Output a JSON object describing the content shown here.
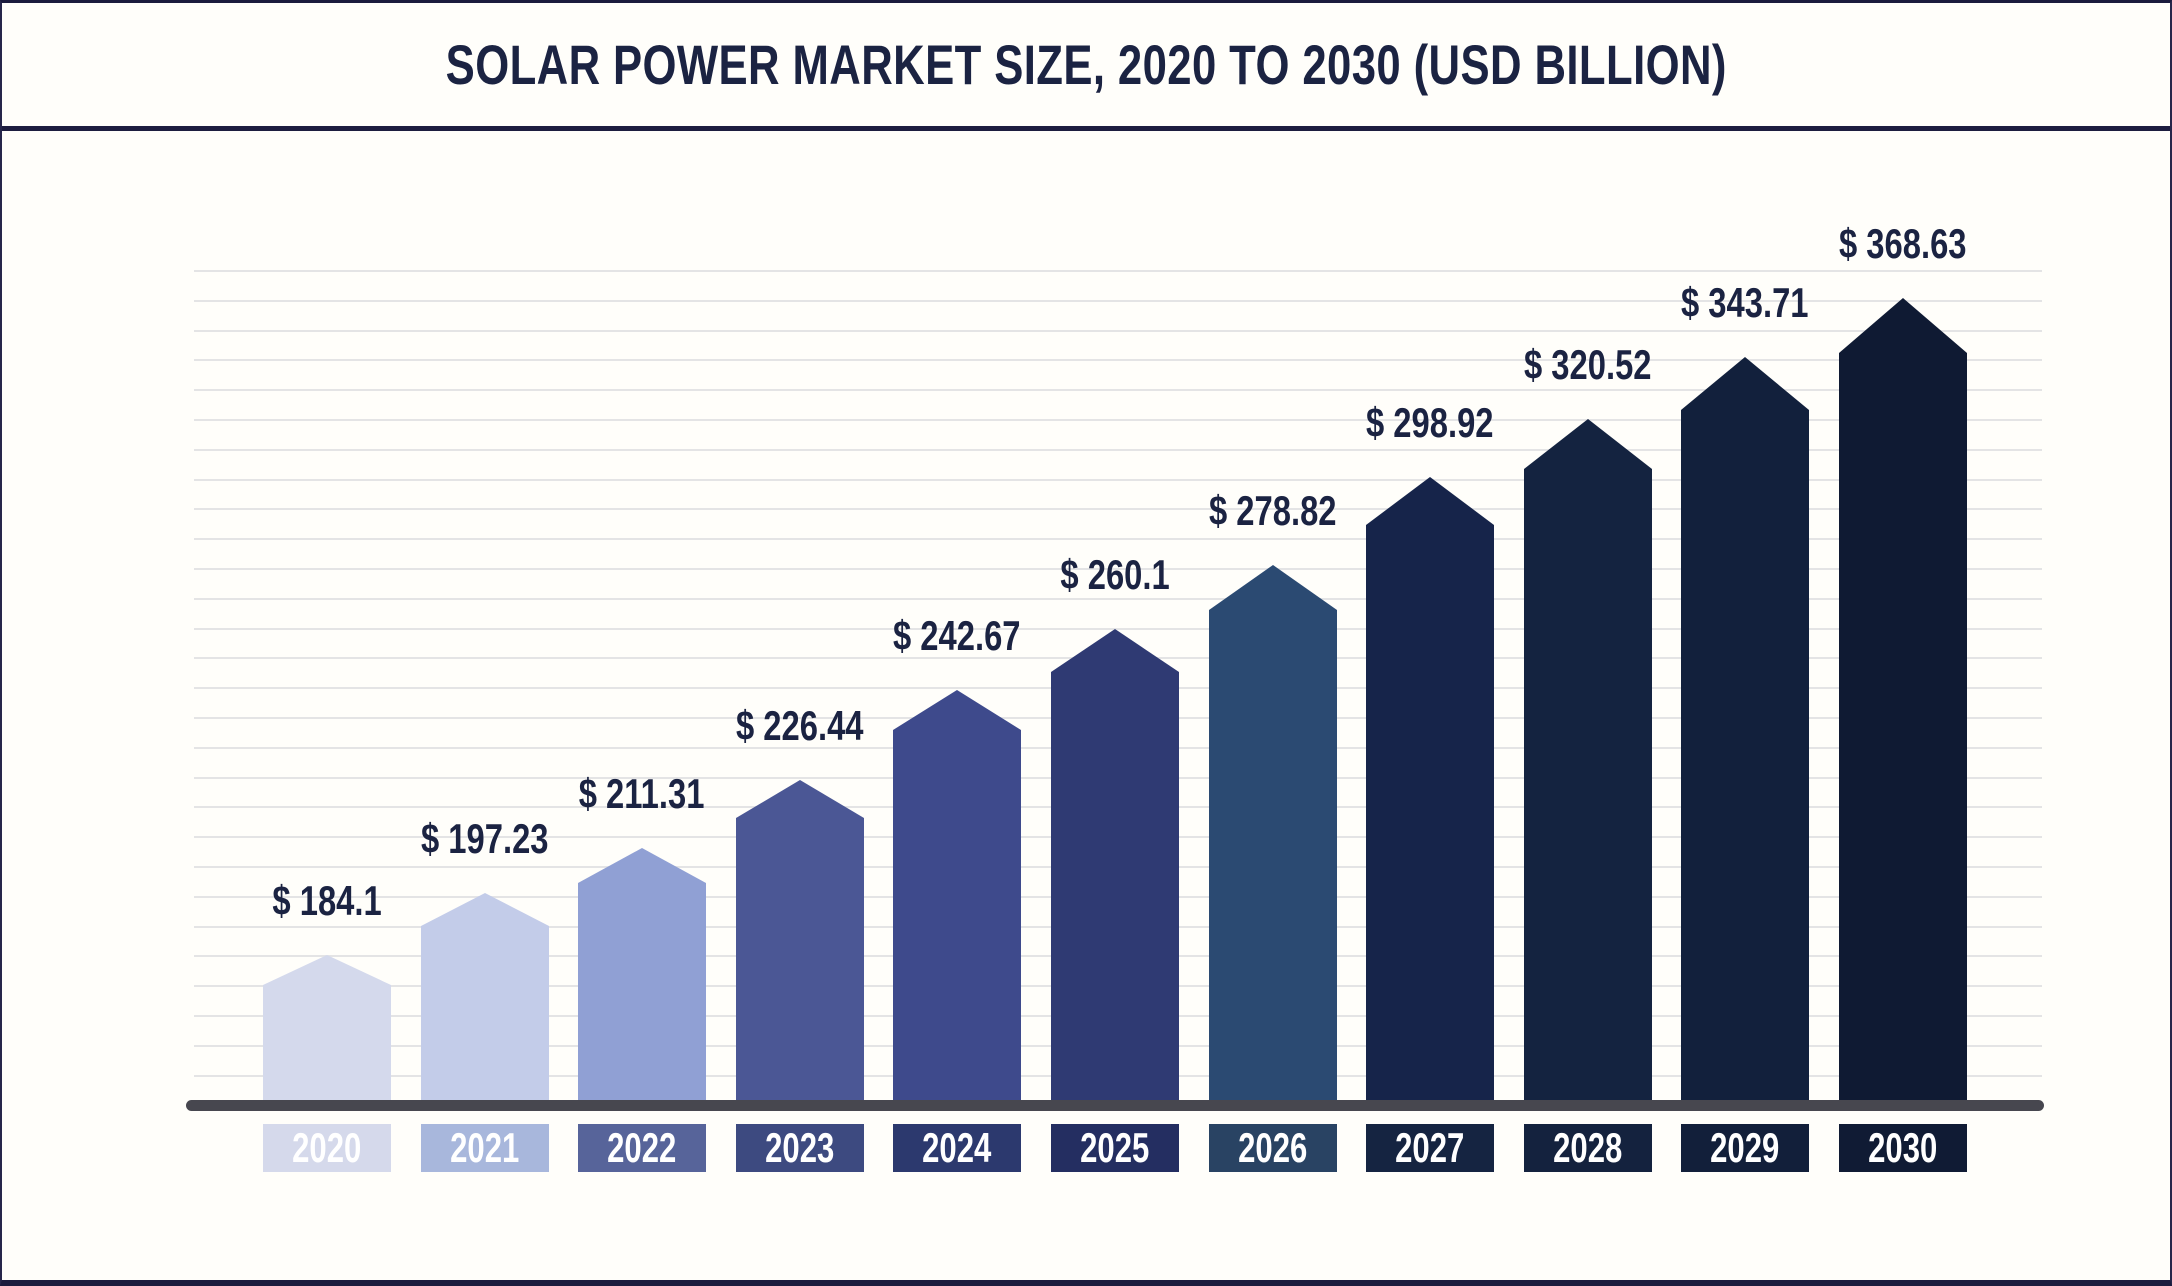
{
  "title": "SOLAR POWER MARKET SIZE, 2020 TO 2030 (USD BILLION)",
  "chart_data": {
    "type": "bar",
    "title": "Solar Power Market Size, 2020 to 2030 (USD Billion)",
    "categories": [
      "2020",
      "2021",
      "2022",
      "2023",
      "2024",
      "2025",
      "2026",
      "2027",
      "2028",
      "2029",
      "2030"
    ],
    "values": [
      184.1,
      197.23,
      211.31,
      226.44,
      242.67,
      260.1,
      278.82,
      298.92,
      320.52,
      343.71,
      368.63
    ],
    "value_prefix": "$ ",
    "unit": "USD Billion",
    "xlabel": "",
    "ylabel": "",
    "grid": "horizontal-only",
    "legend": "none",
    "bar_shape": "pentagon-pointed-top",
    "bar_colors": [
      "#d4d9ec",
      "#c3cce9",
      "#90a0d4",
      "#4b5795",
      "#3e4a8c",
      "#2f3a73",
      "#2b4a72",
      "#16244a",
      "#142340",
      "#12203c",
      "#0f1a33"
    ],
    "year_box_colors": [
      "#d5d9eb",
      "#a8b7dc",
      "#57649a",
      "#3d4a80",
      "#2c396e",
      "#242e61",
      "#294363",
      "#152441",
      "#14223e",
      "#121f3a",
      "#101b34"
    ],
    "title_color": "#1b2342",
    "value_label_color": "#1b2342",
    "axis_line_color": "#47474f",
    "gridline_color": "#e4e4e5",
    "background_color": "#fffefa"
  }
}
